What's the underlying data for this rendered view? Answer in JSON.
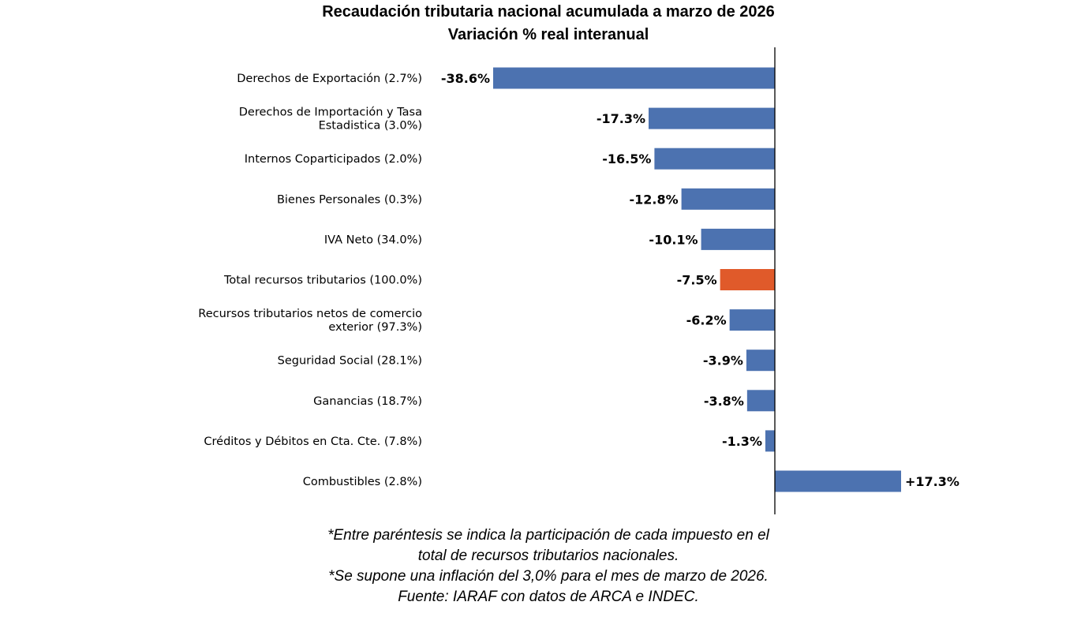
{
  "chart_data": {
    "type": "bar",
    "orientation": "horizontal",
    "title": "Recaudación tributaria nacional acumulada a marzo de 2026",
    "subtitle": "Variación % real interanual",
    "categories": [
      "Derechos de Exportación (2.7%)",
      "Derechos de Importación y Tasa\nEstadistica (3.0%)",
      "Internos Coparticipados (2.0%)",
      "Bienes Personales (0.3%)",
      "IVA Neto (34.0%)",
      "Total recursos tributarios (100.0%)",
      "Recursos tributarios netos de comercio\nexterior (97.3%)",
      "Seguridad Social (28.1%)",
      "Ganancias (18.7%)",
      "Créditos y Débitos en Cta. Cte. (7.8%)",
      "Combustibles (2.8%)"
    ],
    "values": [
      -38.6,
      -17.3,
      -16.5,
      -12.8,
      -10.1,
      -7.5,
      -6.2,
      -3.9,
      -3.8,
      -1.3,
      17.3
    ],
    "data_labels": [
      "-38.6%",
      "-17.3%",
      "-16.5%",
      "-12.8%",
      "-10.1%",
      "-7.5%",
      "-6.2%",
      "-3.9%",
      "-3.8%",
      "-1.3%",
      "+17.3%"
    ],
    "highlight_category": "Total recursos tributarios (100.0%)",
    "colors": {
      "default": "#4C72B0",
      "highlight": "#E05A2A"
    },
    "xlim": [
      -38.6,
      25
    ],
    "grid": false,
    "xlabel": "",
    "ylabel": ""
  },
  "notes": [
    "*Entre paréntesis se indica la participación de cada impuesto en el",
    "total de recursos tributarios nacionales.",
    "*Se supone una inflación del 3,0% para el mes de marzo de 2026.",
    "Fuente: IARAF con datos de ARCA e INDEC."
  ]
}
